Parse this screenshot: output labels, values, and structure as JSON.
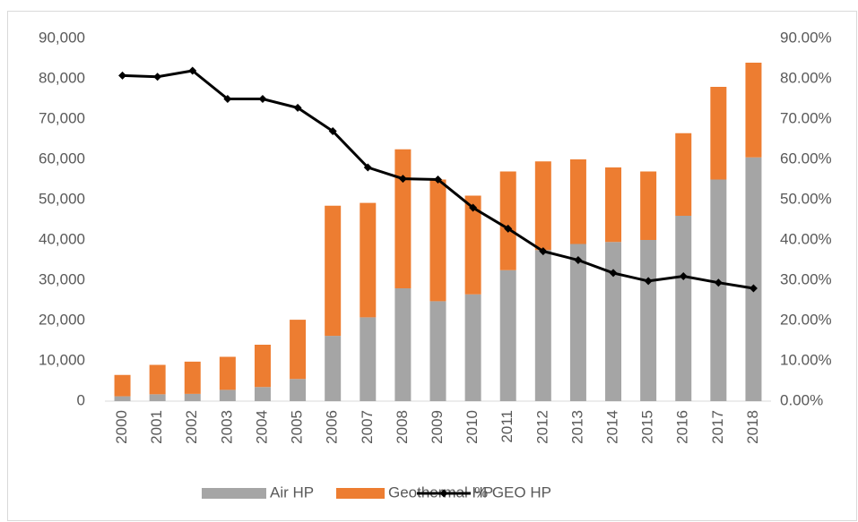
{
  "chart_data": {
    "type": "bar",
    "stacked": true,
    "categories": [
      "2000",
      "2001",
      "2002",
      "2003",
      "2004",
      "2005",
      "2006",
      "2007",
      "2008",
      "2009",
      "2010",
      "2011",
      "2012",
      "2013",
      "2014",
      "2015",
      "2016",
      "2017",
      "2018"
    ],
    "series": [
      {
        "name": "Air HP",
        "color": "#a5a5a5",
        "values": [
          1200,
          1700,
          1800,
          2800,
          3500,
          5500,
          16200,
          20800,
          28000,
          24800,
          26500,
          32500,
          37500,
          39000,
          39500,
          40000,
          46000,
          55000,
          60500
        ]
      },
      {
        "name": "Geothermal HP",
        "color": "#ed7d31",
        "values": [
          5300,
          7300,
          8000,
          8200,
          10500,
          14700,
          32300,
          28400,
          34500,
          30200,
          24500,
          24500,
          22000,
          21000,
          18500,
          17000,
          20500,
          23000,
          23500
        ]
      },
      {
        "name": "% GEO HP",
        "color": "#000000",
        "type": "line",
        "axis": "y2",
        "values": [
          80.8,
          80.5,
          82.0,
          75.0,
          75.0,
          72.8,
          67.0,
          58.0,
          55.2,
          55.0,
          48.0,
          42.8,
          37.2,
          35.0,
          31.8,
          29.8,
          31.0,
          29.4,
          28.0
        ]
      }
    ],
    "ylim": [
      0,
      90000
    ],
    "yticks": [
      0,
      {
        "value": 10000,
        "label": "10,000"
      },
      {
        "value": 20000,
        "label": "20,000"
      },
      {
        "value": 30000,
        "label": "30,000"
      },
      {
        "value": 40000,
        "label": "40,000"
      },
      {
        "value": 50000,
        "label": "50,000"
      },
      {
        "value": 60000,
        "label": "60,000"
      },
      {
        "value": 70000,
        "label": "70,000"
      },
      {
        "value": 80000,
        "label": "80,000"
      },
      {
        "value": 90000,
        "label": "90,000"
      }
    ],
    "y2lim": [
      0,
      90
    ],
    "y2ticks": [
      {
        "value": 0,
        "label": "0.00%"
      },
      {
        "value": 10,
        "label": "10.00%"
      },
      {
        "value": 20,
        "label": "20.00%"
      },
      {
        "value": 30,
        "label": "30.00%"
      },
      {
        "value": 40,
        "label": "40.00%"
      },
      {
        "value": 50,
        "label": "50.00%"
      },
      {
        "value": 60,
        "label": "60.00%"
      },
      {
        "value": 70,
        "label": "70.00%"
      },
      {
        "value": 80,
        "label": "80.00%"
      },
      {
        "value": 90,
        "label": "90.00%"
      }
    ],
    "legend": "bottom"
  }
}
